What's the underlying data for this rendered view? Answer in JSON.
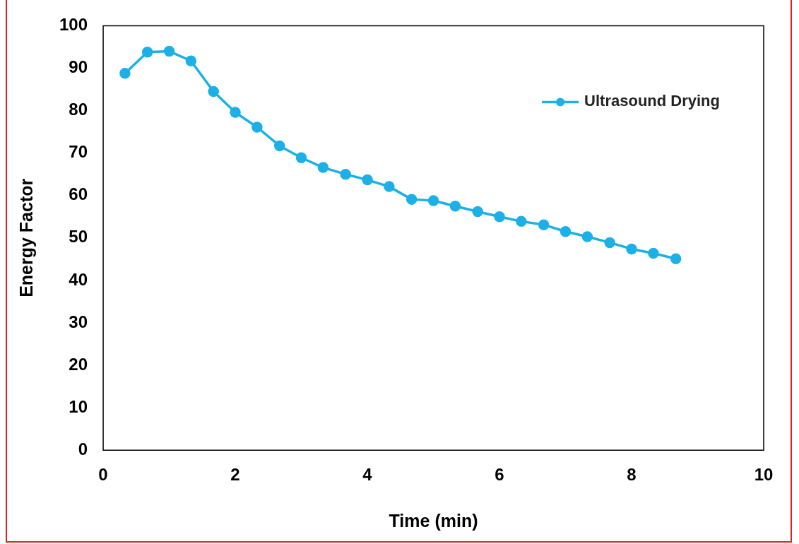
{
  "chart_data": {
    "type": "line",
    "xlabel": "Time (min)",
    "ylabel": "Energy Factor",
    "xlim": [
      0,
      10
    ],
    "xticks": [
      0,
      2,
      4,
      6,
      8,
      10
    ],
    "ylim": [
      0,
      100
    ],
    "yticks": [
      0,
      10,
      20,
      30,
      40,
      50,
      60,
      70,
      80,
      90,
      100
    ],
    "grid": false,
    "legend": "top right",
    "marker": "circle",
    "line_style": "solid",
    "series": [
      {
        "name": "Ultrasound Drying",
        "color": "#1cb0e6",
        "x": [
          0.33,
          0.67,
          1,
          1.33,
          1.67,
          2,
          2.33,
          2.67,
          3,
          3.33,
          3.67,
          4,
          4.33,
          4.67,
          5,
          5.33,
          5.67,
          6,
          6.33,
          6.67,
          7,
          7.33,
          7.67,
          8,
          8.33,
          8.67
        ],
        "values": [
          88.8,
          93.8,
          94.0,
          91.7,
          84.5,
          79.6,
          76.1,
          71.7,
          68.9,
          66.6,
          65.0,
          63.7,
          62.1,
          59.1,
          58.8,
          57.5,
          56.2,
          55.0,
          53.9,
          53.1,
          51.5,
          50.3,
          48.9,
          47.4,
          46.4,
          45.1
        ]
      }
    ]
  }
}
